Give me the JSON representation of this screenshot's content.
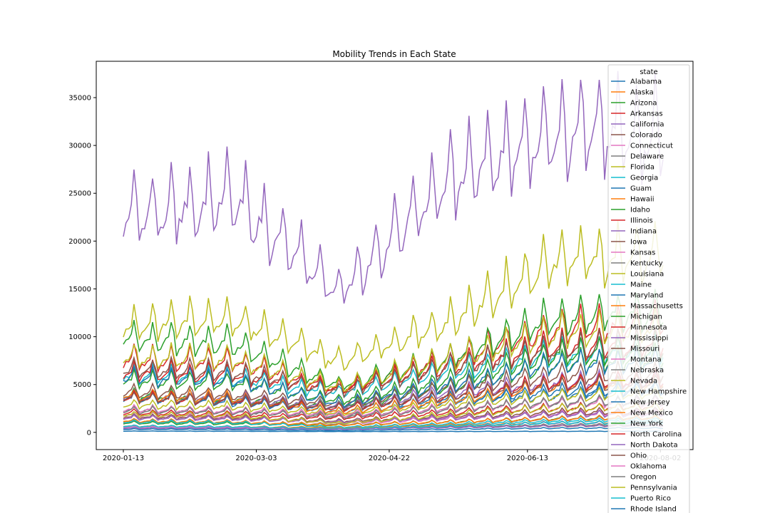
{
  "chart_data": {
    "type": "line",
    "title": "Mobility Trends in Each State",
    "xlabel": "",
    "ylabel": "",
    "legend_title": "state",
    "legend_position": "right",
    "grid": false,
    "x_start": "2020-01-13",
    "x_end": "2020-08-03",
    "x_ticks": [
      "2020-01-13",
      "2020-03-03",
      "2020-04-22",
      "2020-06-13",
      "2020-08-02"
    ],
    "y_ticks": [
      0,
      5000,
      10000,
      15000,
      20000,
      25000,
      30000,
      35000
    ],
    "ylim": [
      -1800,
      38800
    ],
    "palette": [
      "#1f77b4",
      "#ff7f0e",
      "#2ca02c",
      "#d62728",
      "#9467bd",
      "#8c564b",
      "#e377c2",
      "#7f7f7f",
      "#bcbd22",
      "#17becf"
    ],
    "series": [
      {
        "name": "Alabama",
        "values": [
          3500,
          2900,
          2400,
          3300,
          3500,
          4200
        ]
      },
      {
        "name": "Alaska",
        "values": [
          600,
          550,
          450,
          500,
          600,
          650
        ]
      },
      {
        "name": "Arizona",
        "values": [
          3600,
          3300,
          2500,
          4300,
          6500,
          7200
        ]
      },
      {
        "name": "Arkansas",
        "values": [
          1900,
          1700,
          1400,
          1900,
          2300,
          2500
        ]
      },
      {
        "name": "California",
        "values": [
          20500,
          22500,
          13500,
          24000,
          29000,
          28500
        ]
      },
      {
        "name": "Colorado",
        "values": [
          3900,
          3600,
          2800,
          4300,
          5500,
          5700
        ]
      },
      {
        "name": "Connecticut",
        "values": [
          1700,
          1500,
          900,
          1300,
          1800,
          1900
        ]
      },
      {
        "name": "Delaware",
        "values": [
          600,
          550,
          350,
          500,
          700,
          750
        ]
      },
      {
        "name": "Florida",
        "values": [
          10200,
          11000,
          6800,
          10500,
          16500,
          17000
        ]
      },
      {
        "name": "Georgia",
        "values": [
          5500,
          5200,
          3800,
          5800,
          7500,
          7800
        ]
      },
      {
        "name": "Guam",
        "values": [
          120,
          110,
          80,
          90,
          100,
          110
        ]
      },
      {
        "name": "Hawaii",
        "values": [
          1100,
          1000,
          500,
          700,
          900,
          1000
        ]
      },
      {
        "name": "Idaho",
        "values": [
          900,
          850,
          700,
          1000,
          1300,
          1400
        ]
      },
      {
        "name": "Illinois",
        "values": [
          7000,
          6800,
          4200,
          7000,
          10000,
          10500
        ]
      },
      {
        "name": "Indiana",
        "values": [
          3500,
          3300,
          2500,
          3800,
          4800,
          5000
        ]
      },
      {
        "name": "Iowa",
        "values": [
          1500,
          1400,
          1100,
          1500,
          1900,
          2000
        ]
      },
      {
        "name": "Kansas",
        "values": [
          1400,
          1300,
          1000,
          1400,
          1700,
          1800
        ]
      },
      {
        "name": "Kentucky",
        "values": [
          2200,
          2000,
          1600,
          2300,
          2800,
          3000
        ]
      },
      {
        "name": "Louisiana",
        "values": [
          2700,
          2500,
          1800,
          2700,
          3500,
          3700
        ]
      },
      {
        "name": "Maine",
        "values": [
          500,
          450,
          300,
          600,
          900,
          1000
        ]
      },
      {
        "name": "Maryland",
        "values": [
          3300,
          3100,
          2000,
          3000,
          4000,
          4200
        ]
      },
      {
        "name": "Massachusetts",
        "values": [
          3500,
          3300,
          2000,
          3000,
          4500,
          4700
        ]
      },
      {
        "name": "Michigan",
        "values": [
          5000,
          4800,
          3000,
          5000,
          7500,
          8000
        ]
      },
      {
        "name": "Minnesota",
        "values": [
          3300,
          3100,
          2300,
          3500,
          4700,
          5000
        ]
      },
      {
        "name": "Mississippi",
        "values": [
          1400,
          1300,
          1000,
          1400,
          1700,
          1800
        ]
      },
      {
        "name": "Missouri",
        "values": [
          3300,
          3100,
          2400,
          3500,
          4500,
          4700
        ]
      },
      {
        "name": "Montana",
        "values": [
          500,
          480,
          350,
          600,
          900,
          950
        ]
      },
      {
        "name": "Nebraska",
        "values": [
          1000,
          950,
          750,
          1000,
          1300,
          1350
        ]
      },
      {
        "name": "Nevada",
        "values": [
          1700,
          1600,
          900,
          1700,
          2300,
          2400
        ]
      },
      {
        "name": "New Hampshire",
        "values": [
          600,
          550,
          350,
          600,
          900,
          950
        ]
      },
      {
        "name": "New Jersey",
        "values": [
          5300,
          5000,
          2800,
          4500,
          6500,
          6800
        ]
      },
      {
        "name": "New Mexico",
        "values": [
          1100,
          1000,
          700,
          1000,
          1300,
          1400
        ]
      },
      {
        "name": "New York",
        "values": [
          9000,
          8500,
          4500,
          7000,
          11000,
          11500
        ]
      },
      {
        "name": "North Carolina",
        "values": [
          5800,
          5500,
          4200,
          6300,
          8200,
          8500
        ]
      },
      {
        "name": "North Dakota",
        "values": [
          400,
          380,
          300,
          450,
          600,
          650
        ]
      },
      {
        "name": "Ohio",
        "values": [
          6000,
          5800,
          4000,
          6200,
          8000,
          8300
        ]
      },
      {
        "name": "Oklahoma",
        "values": [
          2200,
          2100,
          1700,
          2300,
          2800,
          2900
        ]
      },
      {
        "name": "Oregon",
        "values": [
          2100,
          2000,
          1500,
          2200,
          2900,
          3000
        ]
      },
      {
        "name": "Pennsylvania",
        "values": [
          7200,
          7000,
          4300,
          7000,
          9500,
          10000
        ]
      },
      {
        "name": "Puerto Rico",
        "values": [
          1000,
          950,
          500,
          800,
          1100,
          1200
        ]
      },
      {
        "name": "Rhode Island",
        "values": [
          300,
          280,
          180,
          300,
          400,
          420
        ]
      }
    ]
  }
}
